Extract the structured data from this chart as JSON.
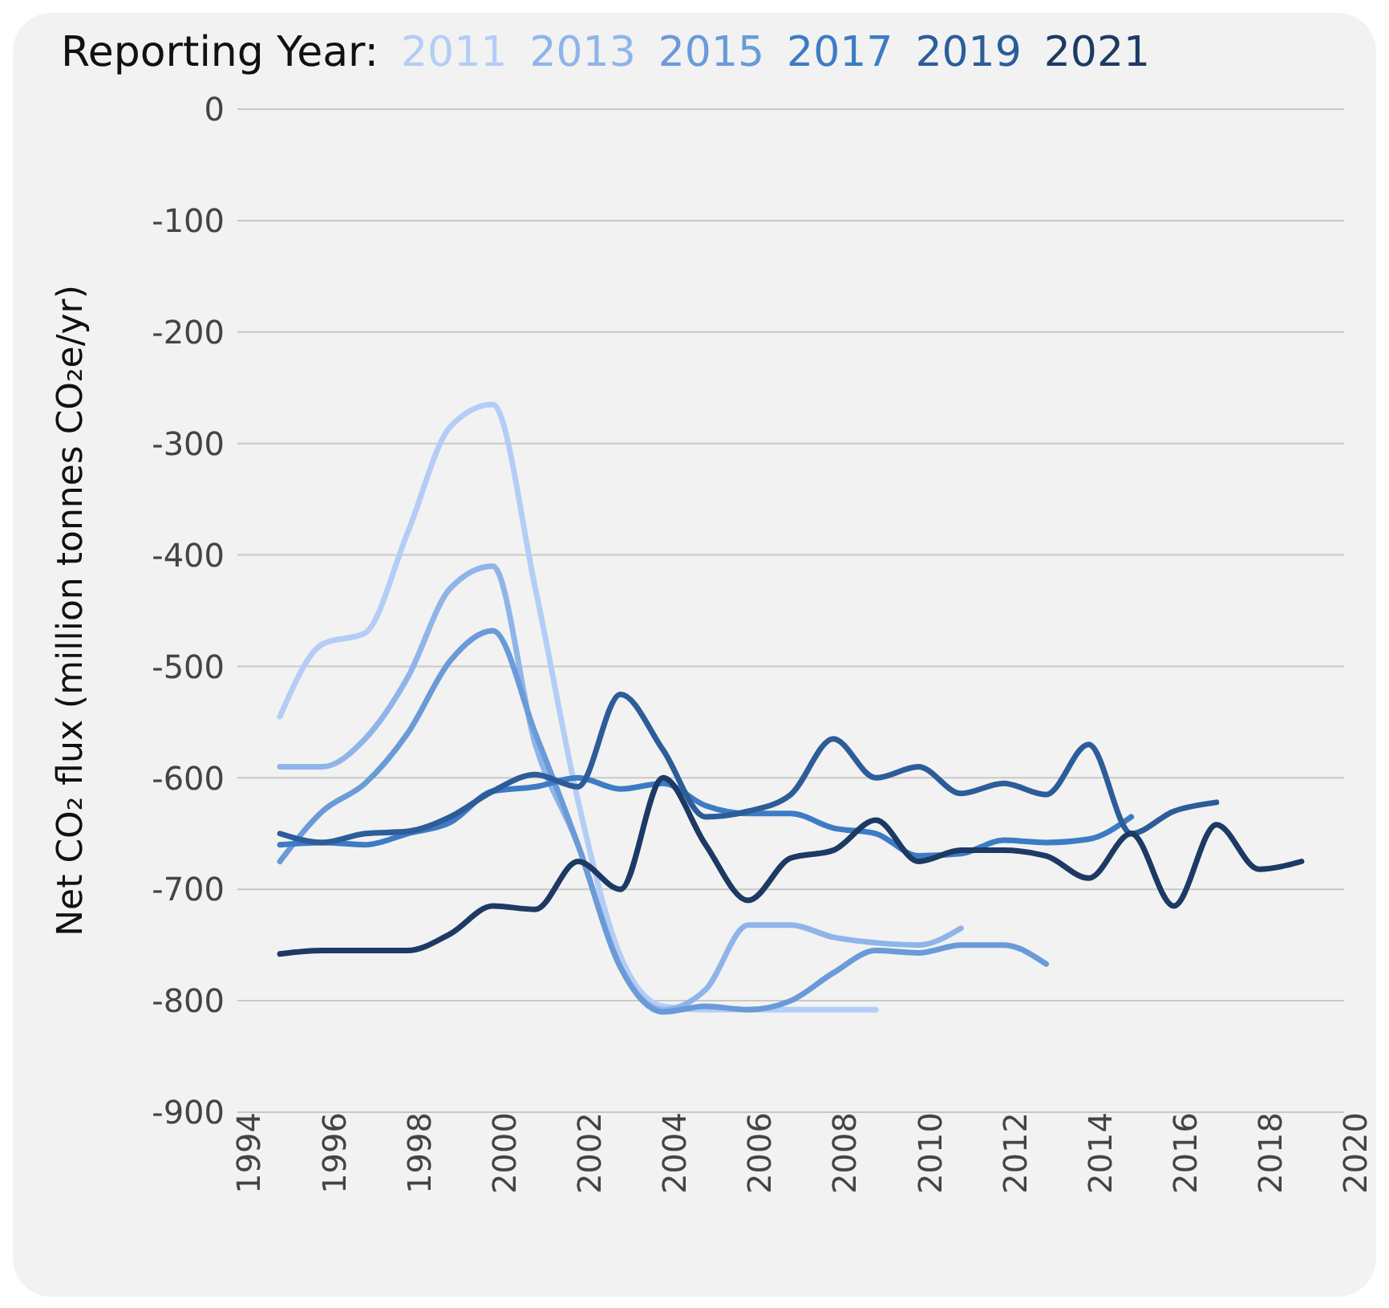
{
  "chart_data": {
    "type": "line",
    "legend_title": "Reporting Year:",
    "ylabel": "Net CO₂ flux (million tonnes CO₂e/yr)",
    "x": [
      1995,
      1996,
      1997,
      1998,
      1999,
      2000,
      2001,
      2002,
      2003,
      2004,
      2005,
      2006,
      2007,
      2008,
      2009,
      2010,
      2011,
      2012,
      2013,
      2014,
      2015,
      2016,
      2017,
      2018,
      2019
    ],
    "series": [
      {
        "name": "2011",
        "color": "#b4cdf6",
        "values": [
          -545,
          -480,
          -470,
          -380,
          -285,
          -265,
          -430,
          -620,
          -760,
          -805,
          -808,
          -808,
          -808,
          -808,
          -808,
          null,
          null,
          null,
          null,
          null,
          null,
          null,
          null,
          null,
          null
        ]
      },
      {
        "name": "2013",
        "color": "#8fb4ea",
        "values": [
          -590,
          -590,
          -565,
          -510,
          -430,
          -410,
          -570,
          -660,
          -770,
          -808,
          -790,
          -732,
          -732,
          -743,
          -748,
          -750,
          -735,
          null,
          null,
          null,
          null,
          null,
          null,
          null,
          null
        ]
      },
      {
        "name": "2015",
        "color": "#6a9ad8",
        "values": [
          -675,
          -630,
          -605,
          -560,
          -495,
          -468,
          -560,
          -660,
          -770,
          -810,
          -805,
          -808,
          -800,
          -775,
          -755,
          -757,
          -750,
          -750,
          -767,
          null,
          null,
          null,
          null,
          null,
          null
        ]
      },
      {
        "name": "2017",
        "color": "#3d7cc4",
        "values": [
          -660,
          -658,
          -660,
          -650,
          -640,
          -612,
          -608,
          -600,
          -610,
          -605,
          -625,
          -632,
          -632,
          -645,
          -650,
          -670,
          -668,
          -656,
          -658,
          -655,
          -635,
          null,
          null,
          null,
          null
        ]
      },
      {
        "name": "2019",
        "color": "#2c5d99",
        "values": [
          -650,
          -658,
          -650,
          -648,
          -635,
          -612,
          -597,
          -608,
          -525,
          -575,
          -635,
          -630,
          -615,
          -565,
          -600,
          -590,
          -614,
          -605,
          -615,
          -570,
          -650,
          -630,
          -622,
          null,
          null
        ]
      },
      {
        "name": "2021",
        "color": "#1c3a63",
        "values": [
          -758,
          -755,
          -755,
          -755,
          -740,
          -715,
          -718,
          -675,
          -700,
          -600,
          -660,
          -710,
          -672,
          -665,
          -638,
          -675,
          -665,
          -665,
          -670,
          -690,
          -650,
          -715,
          -642,
          -682,
          -675
        ]
      }
    ],
    "xlim": [
      1994,
      2020
    ],
    "xticks": [
      1994,
      1996,
      1998,
      2000,
      2002,
      2004,
      2006,
      2008,
      2010,
      2012,
      2014,
      2016,
      2018,
      2020
    ],
    "ylim": [
      -900,
      0
    ],
    "yticks": [
      -900,
      -800,
      -700,
      -600,
      -500,
      -400,
      -300,
      -200,
      -100,
      0
    ],
    "grid": "y",
    "legend": "top left",
    "marker": "none",
    "line_style": "solid"
  }
}
